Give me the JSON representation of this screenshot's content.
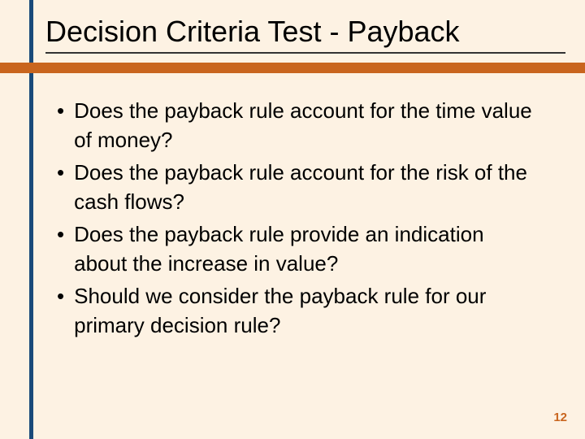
{
  "slide": {
    "title": "Decision Criteria Test - Payback",
    "bullets": [
      "Does the payback rule account for the time value of money?",
      "Does the payback rule account for the risk of the cash flows?",
      "Does the payback rule provide an indication about the increase in value?",
      "Should we consider the payback rule for our primary decision rule?"
    ],
    "page_number": "12",
    "colors": {
      "background": "#fdf2e3",
      "left_border": "#1a4a7a",
      "orange_bar": "#c9651e",
      "title_underline": "#333333",
      "text": "#000000",
      "page_number": "#c9651e"
    },
    "typography": {
      "title_fontsize": 36,
      "bullet_fontsize": 26,
      "page_number_fontsize": 15
    }
  }
}
